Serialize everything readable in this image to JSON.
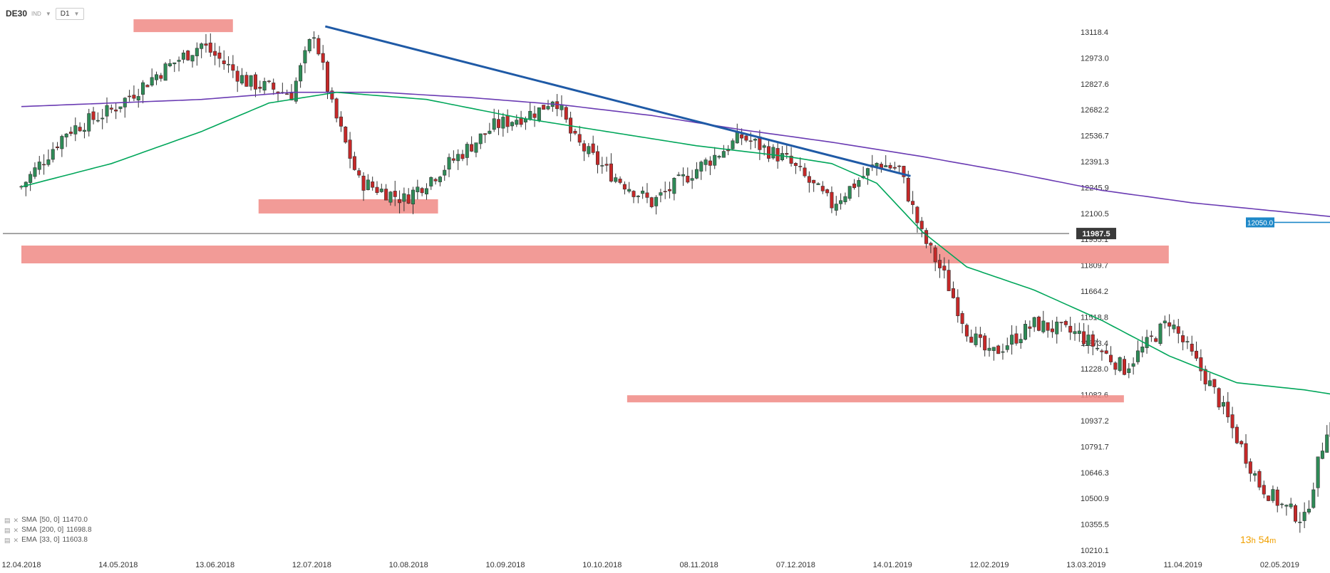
{
  "toolbar": {
    "symbol": "DE30",
    "tag": "IND",
    "timeframe": "D1"
  },
  "indicators": [
    {
      "label": "SMA",
      "params": "[50, 0]",
      "value": "11470.0",
      "color": "#00a65a"
    },
    {
      "label": "SMA",
      "params": "[200, 0]",
      "value": "11698.8",
      "color": "#6a3bb3"
    },
    {
      "label": "EMA",
      "params": "[33, 0]",
      "value": "11603.8",
      "color": "#2b8a3e"
    }
  ],
  "countdown": {
    "hours": "13",
    "h_unit": "h",
    "minutes": "54",
    "m_unit": "m"
  },
  "colors": {
    "up": "#2e8b57",
    "down": "#c62828",
    "sma50": "#00a65a",
    "sma200": "#6a3bb3",
    "trendline": "#1f5aa6",
    "zone": "#f08a85",
    "badge": "#1e88c8",
    "current_price_bg": "#3a3a3a"
  },
  "chart_data": {
    "type": "candlestick",
    "symbol": "DE30",
    "timeframe": "D1",
    "ylim": [
      10210.1,
      13190.0
    ],
    "y_ticks": [
      "13118.4",
      "12973.0",
      "12827.6",
      "12682.2",
      "12536.7",
      "12391.3",
      "12245.9",
      "12100.5",
      "11955.1",
      "11809.7",
      "11664.2",
      "11518.8",
      "11373.4",
      "11228.0",
      "11082.6",
      "10937.2",
      "10791.7",
      "10646.3",
      "10500.9",
      "10355.5",
      "10210.1"
    ],
    "x_ticks": [
      "12.04.2018",
      "14.05.2018",
      "13.06.2018",
      "12.07.2018",
      "10.08.2018",
      "10.09.2018",
      "10.10.2018",
      "08.11.2018",
      "07.12.2018",
      "14.01.2019",
      "12.02.2019",
      "13.03.2019",
      "11.04.2019",
      "02.05.2019"
    ],
    "current_price": "11987.5",
    "level_badge": "12050.0",
    "level_value": 12050.0,
    "support_resistance_zones": [
      {
        "from": 13118,
        "to": 13190,
        "start": "17.05.2018",
        "end": "17.06.2018"
      },
      {
        "from": 12100,
        "to": 12180,
        "start": "25.06.2018",
        "end": "20.08.2018"
      },
      {
        "from": 11820,
        "to": 11920,
        "start": "12.04.2018",
        "end": "05.04.2019"
      },
      {
        "from": 11040,
        "to": 11080,
        "start": "18.10.2018",
        "end": "22.03.2019"
      }
    ],
    "trendline": {
      "from": [
        13.5,
        13150
      ],
      "to": [
        39.5,
        12310
      ]
    },
    "anchor_points": [
      [
        0,
        12250
      ],
      [
        2,
        12560
      ],
      [
        4,
        12680
      ],
      [
        6,
        12880
      ],
      [
        8,
        13050
      ],
      [
        10,
        12840
      ],
      [
        12,
        12770
      ],
      [
        13,
        13120
      ],
      [
        13.8,
        12700
      ],
      [
        15,
        12280
      ],
      [
        17,
        12180
      ],
      [
        19,
        12380
      ],
      [
        21,
        12590
      ],
      [
        23,
        12680
      ],
      [
        23.7,
        12760
      ],
      [
        24.5,
        12520
      ],
      [
        26,
        12340
      ],
      [
        28,
        12160
      ],
      [
        30,
        12350
      ],
      [
        32,
        12530
      ],
      [
        34,
        12400
      ],
      [
        36,
        12150
      ],
      [
        38,
        12380
      ],
      [
        39,
        12350
      ],
      [
        40,
        11980
      ],
      [
        41,
        11750
      ],
      [
        42,
        11450
      ],
      [
        43,
        11300
      ],
      [
        45,
        11480
      ],
      [
        47,
        11420
      ],
      [
        49,
        11230
      ],
      [
        51,
        11500
      ],
      [
        53,
        11100
      ],
      [
        55,
        10580
      ],
      [
        56,
        10460
      ],
      [
        57,
        10380
      ],
      [
        58,
        10900
      ],
      [
        60,
        11100
      ],
      [
        62,
        11250
      ],
      [
        64,
        11130
      ],
      [
        65,
        11000
      ],
      [
        66,
        11250
      ],
      [
        68,
        11480
      ],
      [
        70,
        11620
      ],
      [
        72,
        11590
      ],
      [
        73.5,
        11400
      ],
      [
        75,
        11560
      ],
      [
        76,
        11980
      ],
      [
        77,
        12050
      ]
    ],
    "sma50_anchors": [
      [
        0,
        12250
      ],
      [
        4,
        12380
      ],
      [
        8,
        12560
      ],
      [
        11,
        12720
      ],
      [
        14,
        12780
      ],
      [
        18,
        12740
      ],
      [
        22,
        12640
      ],
      [
        26,
        12560
      ],
      [
        30,
        12480
      ],
      [
        34,
        12420
      ],
      [
        36,
        12380
      ],
      [
        38,
        12270
      ],
      [
        40,
        12000
      ],
      [
        42,
        11800
      ],
      [
        45,
        11670
      ],
      [
        48,
        11500
      ],
      [
        51,
        11300
      ],
      [
        54,
        11150
      ],
      [
        57,
        11110
      ],
      [
        59,
        11070
      ],
      [
        62,
        11030
      ],
      [
        65,
        11010
      ],
      [
        67,
        11060
      ],
      [
        69,
        11150
      ],
      [
        71,
        11260
      ],
      [
        73,
        11340
      ],
      [
        75,
        11420
      ],
      [
        76,
        11470
      ]
    ],
    "sma200_anchors": [
      [
        0,
        12700
      ],
      [
        4,
        12720
      ],
      [
        8,
        12740
      ],
      [
        12,
        12780
      ],
      [
        16,
        12780
      ],
      [
        20,
        12750
      ],
      [
        24,
        12710
      ],
      [
        28,
        12650
      ],
      [
        32,
        12570
      ],
      [
        36,
        12500
      ],
      [
        40,
        12420
      ],
      [
        44,
        12330
      ],
      [
        48,
        12230
      ],
      [
        52,
        12160
      ],
      [
        56,
        12110
      ],
      [
        60,
        12060
      ],
      [
        63,
        12000
      ],
      [
        66,
        11930
      ],
      [
        69,
        11850
      ],
      [
        72,
        11780
      ],
      [
        75,
        11720
      ],
      [
        76,
        11699
      ]
    ]
  }
}
